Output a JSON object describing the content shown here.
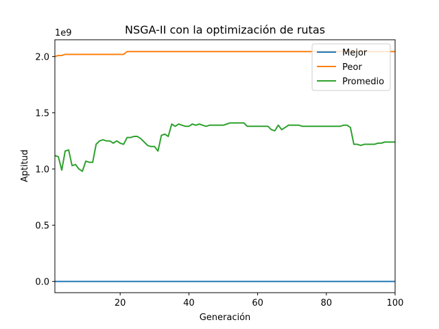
{
  "chart_data": {
    "type": "line",
    "title": "NSGA-II con la optimización de rutas",
    "xlabel": "Generación",
    "ylabel": "Aptitud",
    "y_offset_label": "1e9",
    "xlim": [
      1,
      100
    ],
    "ylim": [
      -0.1,
      2.15
    ],
    "y_scale_note": "values in units of 1e9",
    "xticks": [
      20,
      40,
      60,
      80,
      100
    ],
    "xtick_labels": [
      "20",
      "40",
      "60",
      "80",
      "100"
    ],
    "yticks": [
      0.0,
      0.5,
      1.0,
      1.5,
      2.0
    ],
    "ytick_labels": [
      "0.0",
      "0.5",
      "1.0",
      "1.5",
      "2.0"
    ],
    "grid": false,
    "legend_position": "top-right",
    "x": [
      1,
      2,
      3,
      4,
      5,
      6,
      7,
      8,
      9,
      10,
      11,
      12,
      13,
      14,
      15,
      16,
      17,
      18,
      19,
      20,
      21,
      22,
      23,
      24,
      25,
      26,
      27,
      28,
      29,
      30,
      31,
      32,
      33,
      34,
      35,
      36,
      37,
      38,
      39,
      40,
      41,
      42,
      43,
      44,
      45,
      46,
      47,
      48,
      49,
      50,
      51,
      52,
      53,
      54,
      55,
      56,
      57,
      58,
      59,
      60,
      61,
      62,
      63,
      64,
      65,
      66,
      67,
      68,
      69,
      70,
      71,
      72,
      73,
      74,
      75,
      76,
      77,
      78,
      79,
      80,
      81,
      82,
      83,
      84,
      85,
      86,
      87,
      88,
      89,
      90,
      91,
      92,
      93,
      94,
      95,
      96,
      97,
      98,
      99,
      100
    ],
    "series": [
      {
        "name": "Mejor",
        "color": "#1f77b4",
        "values": [
          0,
          0,
          0,
          0,
          0,
          0,
          0,
          0,
          0,
          0,
          0,
          0,
          0,
          0,
          0,
          0,
          0,
          0,
          0,
          0,
          0,
          0,
          0,
          0,
          0,
          0,
          0,
          0,
          0,
          0,
          0,
          0,
          0,
          0,
          0,
          0,
          0,
          0,
          0,
          0,
          0,
          0,
          0,
          0,
          0,
          0,
          0,
          0,
          0,
          0,
          0,
          0,
          0,
          0,
          0,
          0,
          0,
          0,
          0,
          0,
          0,
          0,
          0,
          0,
          0,
          0,
          0,
          0,
          0,
          0,
          0,
          0,
          0,
          0,
          0,
          0,
          0,
          0,
          0,
          0,
          0,
          0,
          0,
          0,
          0,
          0,
          0,
          0,
          0,
          0,
          0,
          0,
          0,
          0,
          0,
          0,
          0,
          0,
          0,
          0
        ]
      },
      {
        "name": "Peor",
        "color": "#ff7f0e",
        "values": [
          2.0,
          2.01,
          2.01,
          2.02,
          2.02,
          2.02,
          2.02,
          2.02,
          2.02,
          2.02,
          2.02,
          2.02,
          2.02,
          2.02,
          2.02,
          2.02,
          2.02,
          2.02,
          2.02,
          2.02,
          2.02,
          2.045,
          2.045,
          2.045,
          2.045,
          2.045,
          2.045,
          2.045,
          2.045,
          2.045,
          2.045,
          2.045,
          2.045,
          2.045,
          2.045,
          2.045,
          2.045,
          2.045,
          2.045,
          2.045,
          2.045,
          2.045,
          2.045,
          2.045,
          2.045,
          2.045,
          2.045,
          2.045,
          2.045,
          2.045,
          2.045,
          2.045,
          2.045,
          2.045,
          2.045,
          2.045,
          2.045,
          2.045,
          2.045,
          2.045,
          2.045,
          2.045,
          2.045,
          2.045,
          2.045,
          2.045,
          2.045,
          2.045,
          2.045,
          2.045,
          2.045,
          2.045,
          2.045,
          2.045,
          2.045,
          2.045,
          2.045,
          2.045,
          2.045,
          2.045,
          2.045,
          2.045,
          2.045,
          2.045,
          2.045,
          2.045,
          2.045,
          2.045,
          2.045,
          2.045,
          2.045,
          2.045,
          2.045,
          2.045,
          2.045,
          2.045,
          2.045,
          2.045,
          2.045,
          2.045
        ]
      },
      {
        "name": "Promedio",
        "color": "#2ca02c",
        "values": [
          1.12,
          1.11,
          0.99,
          1.16,
          1.17,
          1.03,
          1.04,
          1.0,
          0.98,
          1.07,
          1.06,
          1.06,
          1.22,
          1.25,
          1.26,
          1.25,
          1.25,
          1.23,
          1.25,
          1.23,
          1.22,
          1.28,
          1.28,
          1.29,
          1.29,
          1.27,
          1.24,
          1.21,
          1.2,
          1.2,
          1.16,
          1.3,
          1.31,
          1.29,
          1.4,
          1.38,
          1.4,
          1.39,
          1.38,
          1.38,
          1.4,
          1.39,
          1.4,
          1.39,
          1.38,
          1.39,
          1.39,
          1.39,
          1.39,
          1.39,
          1.4,
          1.41,
          1.41,
          1.41,
          1.41,
          1.41,
          1.38,
          1.38,
          1.38,
          1.38,
          1.38,
          1.38,
          1.38,
          1.35,
          1.34,
          1.39,
          1.35,
          1.37,
          1.39,
          1.39,
          1.39,
          1.39,
          1.38,
          1.38,
          1.38,
          1.38,
          1.38,
          1.38,
          1.38,
          1.38,
          1.38,
          1.38,
          1.38,
          1.38,
          1.39,
          1.39,
          1.37,
          1.22,
          1.22,
          1.21,
          1.22,
          1.22,
          1.22,
          1.22,
          1.23,
          1.23,
          1.24,
          1.24,
          1.24,
          1.24
        ]
      }
    ]
  }
}
